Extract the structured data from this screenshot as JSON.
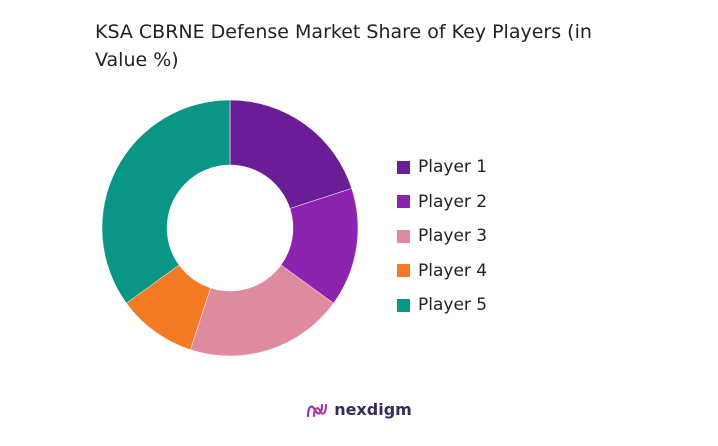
{
  "chart_data": {
    "type": "pie",
    "title": "KSA CBRNE Defense Market Share of Key Players (in Value %)",
    "categories": [
      "Player 1",
      "Player 2",
      "Player 3",
      "Player 4",
      "Player 5"
    ],
    "values": [
      20,
      15,
      20,
      10,
      35
    ],
    "colors": [
      "#6a1d96",
      "#8c24b0",
      "#e08aa0",
      "#f47b24",
      "#0a9684"
    ],
    "donut": true,
    "legend": "right"
  },
  "brand": {
    "name": "nexdigm",
    "icon": "nexdigm-logo-icon"
  }
}
